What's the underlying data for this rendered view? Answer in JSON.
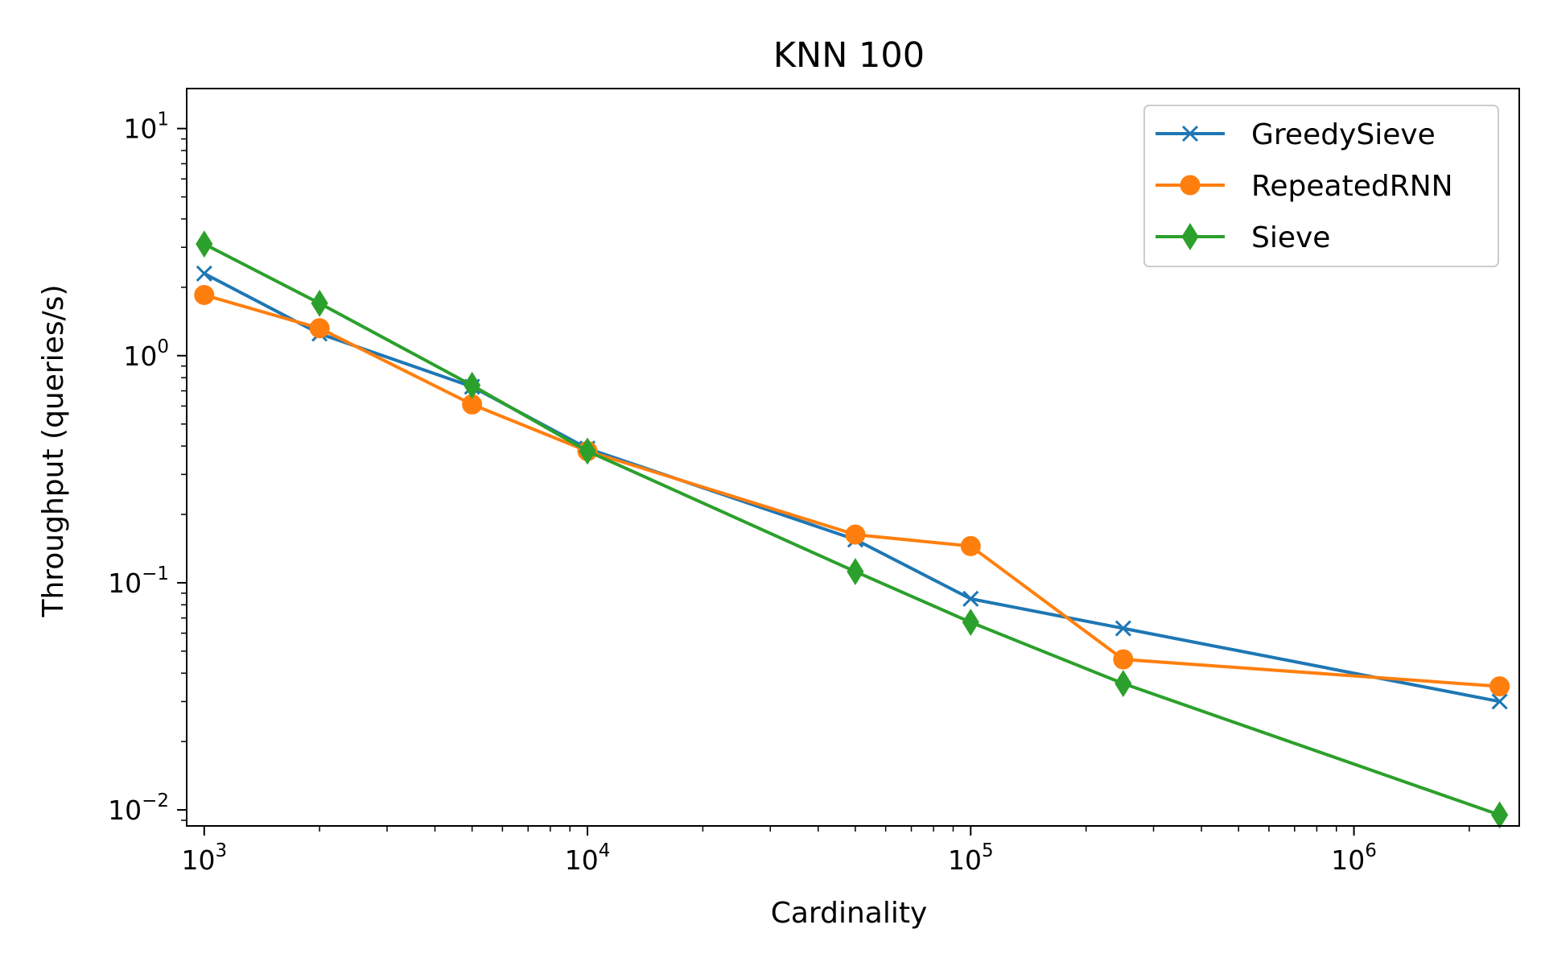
{
  "chart_data": {
    "type": "line",
    "title": "KNN 100",
    "xlabel": "Cardinality",
    "ylabel": "Throughput (queries/s)",
    "x_scale": "log",
    "y_scale": "log",
    "xlim": [
      900,
      2700000
    ],
    "ylim": [
      0.0085,
      15
    ],
    "x": [
      1000,
      2000,
      5000,
      10000,
      50000,
      100000,
      250000,
      2400000
    ],
    "x_ticks": [
      {
        "value": 1000,
        "base": "10",
        "exp": "3"
      },
      {
        "value": 10000,
        "base": "10",
        "exp": "4"
      },
      {
        "value": 100000,
        "base": "10",
        "exp": "5"
      },
      {
        "value": 1000000,
        "base": "10",
        "exp": "6"
      }
    ],
    "y_ticks": [
      {
        "value": 10,
        "base": "10",
        "exp": "1"
      },
      {
        "value": 1,
        "base": "10",
        "exp": "0"
      },
      {
        "value": 0.1,
        "base": "10",
        "exp": "−1"
      },
      {
        "value": 0.01,
        "base": "10",
        "exp": "−2"
      }
    ],
    "grid": false,
    "legend_position": "top-right",
    "series": [
      {
        "name": "GreedySieve",
        "color": "#1f77b4",
        "marker": "x",
        "values": [
          2.3,
          1.25,
          0.73,
          0.39,
          0.155,
          0.085,
          0.063,
          0.03
        ]
      },
      {
        "name": "RepeatedRNN",
        "color": "#ff7f0e",
        "marker": "circle",
        "values": [
          1.85,
          1.32,
          0.61,
          0.38,
          0.163,
          0.145,
          0.046,
          0.035
        ]
      },
      {
        "name": "Sieve",
        "color": "#2ca02c",
        "marker": "diamond",
        "values": [
          3.1,
          1.7,
          0.74,
          0.38,
          0.112,
          0.067,
          0.036,
          0.0095
        ]
      }
    ]
  }
}
